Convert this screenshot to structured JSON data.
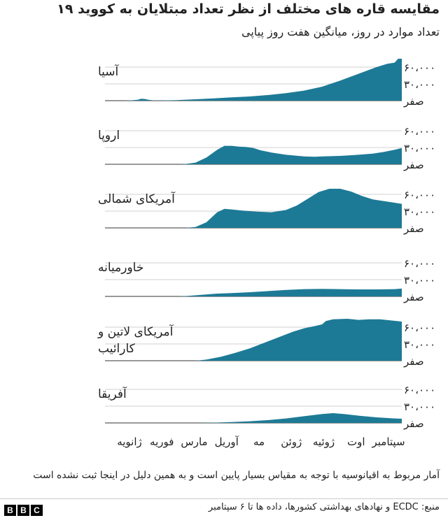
{
  "header": {
    "title": "مقایسه قاره های مختلف از نظر تعداد مبتلایان به کووید ۱۹",
    "subtitle": "تعداد موارد در روز، میانگین هفت روز پیاپی"
  },
  "chart_data": {
    "type": "area",
    "x_labels": [
      "ژانویه",
      "فوریه",
      "مارس",
      "آوریل",
      "مه",
      "ژوئن",
      "ژوئیه",
      "اوت",
      "سپتامبر"
    ],
    "y_ticks": [
      {
        "value": 0,
        "label": "صفر"
      },
      {
        "value": 30000,
        "label": "۳۰،۰۰۰"
      },
      {
        "value": 60000,
        "label": "۶۰،۰۰۰"
      }
    ],
    "ylim": [
      0,
      75000
    ],
    "xlim": [
      0,
      8.2
    ],
    "color": "#1d7a96",
    "series": [
      {
        "name": "آسیا",
        "label_lines": [
          "آسیا"
        ],
        "points": [
          [
            0,
            0
          ],
          [
            0.5,
            0
          ],
          [
            0.7,
            500
          ],
          [
            0.9,
            1500
          ],
          [
            1.0,
            3500
          ],
          [
            1.1,
            3000
          ],
          [
            1.2,
            1500
          ],
          [
            1.35,
            500
          ],
          [
            1.5,
            300
          ],
          [
            2,
            1000
          ],
          [
            2.5,
            2500
          ],
          [
            3,
            4000
          ],
          [
            3.5,
            6000
          ],
          [
            4,
            7500
          ],
          [
            4.5,
            10000
          ],
          [
            5,
            13500
          ],
          [
            5.5,
            18000
          ],
          [
            6,
            25000
          ],
          [
            6.5,
            36000
          ],
          [
            7,
            48000
          ],
          [
            7.5,
            60000
          ],
          [
            7.8,
            66000
          ],
          [
            8.0,
            68000
          ],
          [
            8.1,
            75000
          ],
          [
            8.2,
            75000
          ]
        ]
      },
      {
        "name": "اروپا",
        "label_lines": [
          "اروپا"
        ],
        "points": [
          [
            0,
            0
          ],
          [
            2,
            0
          ],
          [
            2.2,
            300
          ],
          [
            2.5,
            3000
          ],
          [
            2.8,
            12000
          ],
          [
            3.1,
            26000
          ],
          [
            3.3,
            33000
          ],
          [
            3.5,
            33000
          ],
          [
            3.7,
            31500
          ],
          [
            3.9,
            31000
          ],
          [
            4.1,
            29000
          ],
          [
            4.3,
            25000
          ],
          [
            4.6,
            21000
          ],
          [
            5,
            17000
          ],
          [
            5.5,
            14000
          ],
          [
            5.8,
            13500
          ],
          [
            6,
            14000
          ],
          [
            6.5,
            15000
          ],
          [
            7,
            17000
          ],
          [
            7.4,
            19000
          ],
          [
            7.7,
            22000
          ],
          [
            8,
            26000
          ],
          [
            8.2,
            29000
          ]
        ]
      },
      {
        "name": "آمریکای شمالی",
        "label_lines": [
          "آمریکای شمالی"
        ],
        "points": [
          [
            0,
            0
          ],
          [
            2.2,
            0
          ],
          [
            2.5,
            1500
          ],
          [
            2.8,
            10000
          ],
          [
            3.1,
            28000
          ],
          [
            3.3,
            34000
          ],
          [
            3.5,
            33000
          ],
          [
            3.8,
            31000
          ],
          [
            4.2,
            29000
          ],
          [
            4.6,
            28000
          ],
          [
            5,
            32000
          ],
          [
            5.3,
            40000
          ],
          [
            5.6,
            52000
          ],
          [
            5.9,
            64000
          ],
          [
            6.2,
            70000
          ],
          [
            6.5,
            70000
          ],
          [
            6.8,
            65000
          ],
          [
            7.1,
            57000
          ],
          [
            7.4,
            51000
          ],
          [
            7.7,
            48000
          ],
          [
            8,
            45000
          ],
          [
            8.2,
            43000
          ]
        ]
      },
      {
        "name": "خاورمیانه",
        "label_lines": [
          "خاورمیانه"
        ],
        "points": [
          [
            0,
            0
          ],
          [
            2,
            0
          ],
          [
            2.3,
            1000
          ],
          [
            2.7,
            3000
          ],
          [
            3.1,
            5000
          ],
          [
            3.5,
            6000
          ],
          [
            4,
            7500
          ],
          [
            4.5,
            9500
          ],
          [
            5,
            11500
          ],
          [
            5.5,
            13000
          ],
          [
            6,
            13500
          ],
          [
            6.5,
            13000
          ],
          [
            7,
            12500
          ],
          [
            7.5,
            12500
          ],
          [
            8,
            13000
          ],
          [
            8.2,
            14000
          ]
        ]
      },
      {
        "name": "آمریکای لاتین و کارائیب",
        "label_lines": [
          "آمریکای لاتین و",
          "کارائیب"
        ],
        "points": [
          [
            0,
            0
          ],
          [
            2.5,
            0
          ],
          [
            2.8,
            2000
          ],
          [
            3.2,
            7000
          ],
          [
            3.6,
            14000
          ],
          [
            4,
            22000
          ],
          [
            4.4,
            32000
          ],
          [
            4.8,
            42000
          ],
          [
            5.2,
            52000
          ],
          [
            5.5,
            58000
          ],
          [
            5.8,
            62000
          ],
          [
            6.0,
            65000
          ],
          [
            6.1,
            71000
          ],
          [
            6.3,
            74000
          ],
          [
            6.7,
            75000
          ],
          [
            7.0,
            73000
          ],
          [
            7.3,
            74000
          ],
          [
            7.6,
            74000
          ],
          [
            7.9,
            72000
          ],
          [
            8.2,
            70000
          ]
        ]
      },
      {
        "name": "آفریقا",
        "label_lines": [
          "آفریقا"
        ],
        "points": [
          [
            0,
            0
          ],
          [
            2.5,
            0
          ],
          [
            3,
            500
          ],
          [
            3.5,
            1500
          ],
          [
            4,
            3000
          ],
          [
            4.5,
            5000
          ],
          [
            5,
            8000
          ],
          [
            5.5,
            12000
          ],
          [
            6,
            16000
          ],
          [
            6.3,
            17500
          ],
          [
            6.6,
            16000
          ],
          [
            7,
            13000
          ],
          [
            7.5,
            10000
          ],
          [
            8,
            8000
          ],
          [
            8.2,
            7500
          ]
        ]
      }
    ]
  },
  "footnote": "آمار مربوط به اقیانوسیه با توجه به مقیاس بسیار پایین است و به همین دلیل در اینجا ثبت نشده است",
  "source": "منبع: ECDC و نهادهای بهداشتی کشورها، داده ها تا ۶ سپتامبر",
  "logo": {
    "letters": [
      "B",
      "B",
      "C"
    ]
  }
}
